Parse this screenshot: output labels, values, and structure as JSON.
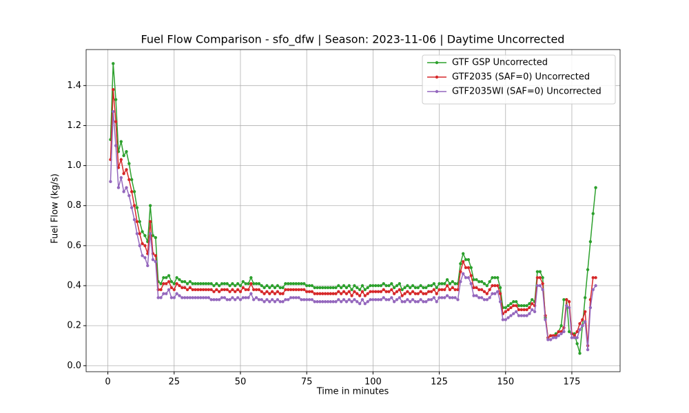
{
  "chart_data": {
    "type": "line",
    "title": "Fuel Flow Comparison - sfo_dfw | Season: 2023-11-06 | Daytime Uncorrected",
    "x_label": "Time in minutes",
    "y_label": "Fuel Flow (kg/s)",
    "x": [
      1,
      2,
      3,
      4,
      5,
      6,
      7,
      8,
      9,
      10,
      11,
      12,
      13,
      14,
      15,
      16,
      17,
      18,
      19,
      20,
      21,
      22,
      23,
      24,
      25,
      26,
      27,
      28,
      29,
      30,
      31,
      32,
      33,
      34,
      35,
      36,
      37,
      38,
      39,
      40,
      41,
      42,
      43,
      44,
      45,
      46,
      47,
      48,
      49,
      50,
      51,
      52,
      53,
      54,
      55,
      56,
      57,
      58,
      59,
      60,
      61,
      62,
      63,
      64,
      65,
      66,
      67,
      68,
      69,
      70,
      71,
      72,
      73,
      74,
      75,
      76,
      77,
      78,
      79,
      80,
      81,
      82,
      83,
      84,
      85,
      86,
      87,
      88,
      89,
      90,
      91,
      92,
      93,
      94,
      95,
      96,
      97,
      98,
      99,
      100,
      101,
      102,
      103,
      104,
      105,
      106,
      107,
      108,
      109,
      110,
      111,
      112,
      113,
      114,
      115,
      116,
      117,
      118,
      119,
      120,
      121,
      122,
      123,
      124,
      125,
      126,
      127,
      128,
      129,
      130,
      131,
      132,
      133,
      134,
      135,
      136,
      137,
      138,
      139,
      140,
      141,
      142,
      143,
      144,
      145,
      146,
      147,
      148,
      149,
      150,
      151,
      152,
      153,
      154,
      155,
      156,
      157,
      158,
      159,
      160,
      161,
      162,
      163,
      164,
      165,
      166,
      167,
      168,
      169,
      170,
      171,
      172,
      173,
      174,
      175,
      176,
      177,
      178,
      179,
      180,
      181,
      182,
      183,
      184
    ],
    "series": [
      {
        "name": "GTF GSP Uncorrected",
        "color": "#2ca02c",
        "values": [
          1.13,
          1.51,
          1.33,
          1.07,
          1.12,
          1.05,
          1.07,
          1.01,
          0.93,
          0.87,
          0.79,
          0.72,
          0.67,
          0.65,
          0.62,
          0.8,
          0.65,
          0.64,
          0.42,
          0.41,
          0.44,
          0.44,
          0.45,
          0.42,
          0.41,
          0.44,
          0.43,
          0.42,
          0.42,
          0.41,
          0.42,
          0.41,
          0.41,
          0.41,
          0.41,
          0.41,
          0.41,
          0.41,
          0.41,
          0.4,
          0.41,
          0.4,
          0.41,
          0.41,
          0.41,
          0.4,
          0.41,
          0.4,
          0.41,
          0.4,
          0.42,
          0.41,
          0.41,
          0.44,
          0.41,
          0.41,
          0.41,
          0.4,
          0.39,
          0.4,
          0.39,
          0.4,
          0.39,
          0.4,
          0.39,
          0.39,
          0.41,
          0.41,
          0.41,
          0.41,
          0.41,
          0.41,
          0.41,
          0.41,
          0.4,
          0.4,
          0.4,
          0.39,
          0.39,
          0.39,
          0.39,
          0.39,
          0.39,
          0.39,
          0.39,
          0.39,
          0.4,
          0.39,
          0.4,
          0.39,
          0.4,
          0.38,
          0.4,
          0.39,
          0.38,
          0.4,
          0.38,
          0.39,
          0.4,
          0.4,
          0.4,
          0.4,
          0.4,
          0.41,
          0.4,
          0.4,
          0.41,
          0.39,
          0.4,
          0.41,
          0.38,
          0.39,
          0.4,
          0.39,
          0.4,
          0.39,
          0.39,
          0.4,
          0.39,
          0.39,
          0.4,
          0.4,
          0.41,
          0.39,
          0.41,
          0.41,
          0.41,
          0.43,
          0.41,
          0.42,
          0.41,
          0.41,
          0.51,
          0.56,
          0.53,
          0.53,
          0.49,
          0.43,
          0.43,
          0.42,
          0.42,
          0.41,
          0.4,
          0.42,
          0.44,
          0.44,
          0.44,
          0.39,
          0.29,
          0.29,
          0.3,
          0.31,
          0.32,
          0.32,
          0.3,
          0.3,
          0.3,
          0.3,
          0.31,
          0.33,
          0.32,
          0.47,
          0.47,
          0.44,
          0.24,
          0.14,
          0.15,
          0.15,
          0.16,
          0.17,
          0.2,
          0.33,
          0.33,
          0.17,
          0.16,
          0.16,
          0.11,
          0.062,
          0.2,
          0.34,
          0.48,
          0.62,
          0.76,
          0.89
        ]
      },
      {
        "name": "GTF2035 (SAF=0) Uncorrected",
        "color": "#d62728",
        "values": [
          1.03,
          1.38,
          1.22,
          0.99,
          1.03,
          0.96,
          0.98,
          0.93,
          0.87,
          0.8,
          0.72,
          0.66,
          0.61,
          0.6,
          0.56,
          0.72,
          0.56,
          0.55,
          0.38,
          0.38,
          0.41,
          0.41,
          0.42,
          0.39,
          0.38,
          0.41,
          0.4,
          0.39,
          0.39,
          0.38,
          0.39,
          0.38,
          0.38,
          0.38,
          0.38,
          0.38,
          0.38,
          0.38,
          0.38,
          0.37,
          0.38,
          0.37,
          0.38,
          0.38,
          0.38,
          0.37,
          0.38,
          0.37,
          0.38,
          0.37,
          0.39,
          0.38,
          0.38,
          0.41,
          0.38,
          0.38,
          0.38,
          0.37,
          0.36,
          0.37,
          0.36,
          0.37,
          0.36,
          0.37,
          0.36,
          0.36,
          0.38,
          0.38,
          0.38,
          0.38,
          0.38,
          0.38,
          0.38,
          0.38,
          0.37,
          0.37,
          0.37,
          0.36,
          0.36,
          0.36,
          0.36,
          0.36,
          0.36,
          0.36,
          0.36,
          0.36,
          0.37,
          0.36,
          0.37,
          0.36,
          0.37,
          0.35,
          0.37,
          0.36,
          0.35,
          0.37,
          0.35,
          0.36,
          0.37,
          0.37,
          0.37,
          0.37,
          0.37,
          0.38,
          0.37,
          0.37,
          0.38,
          0.36,
          0.37,
          0.38,
          0.35,
          0.36,
          0.37,
          0.36,
          0.37,
          0.36,
          0.36,
          0.37,
          0.36,
          0.36,
          0.37,
          0.37,
          0.38,
          0.36,
          0.38,
          0.38,
          0.38,
          0.4,
          0.38,
          0.39,
          0.38,
          0.38,
          0.47,
          0.52,
          0.49,
          0.49,
          0.45,
          0.39,
          0.39,
          0.38,
          0.38,
          0.37,
          0.36,
          0.38,
          0.4,
          0.4,
          0.4,
          0.36,
          0.26,
          0.27,
          0.28,
          0.29,
          0.3,
          0.3,
          0.28,
          0.28,
          0.28,
          0.28,
          0.29,
          0.31,
          0.3,
          0.44,
          0.44,
          0.41,
          0.25,
          0.14,
          0.15,
          0.15,
          0.15,
          0.17,
          0.17,
          0.19,
          0.33,
          0.32,
          0.16,
          0.15,
          0.17,
          0.21,
          0.23,
          0.27,
          0.1,
          0.33,
          0.44,
          0.44
        ]
      },
      {
        "name": "GTF2035WI (SAF=0) Uncorrected",
        "color": "#9467bd",
        "values": [
          0.92,
          1.27,
          1.1,
          0.89,
          0.94,
          0.87,
          0.89,
          0.85,
          0.79,
          0.73,
          0.66,
          0.6,
          0.55,
          0.54,
          0.5,
          0.66,
          0.53,
          0.52,
          0.34,
          0.34,
          0.36,
          0.36,
          0.38,
          0.34,
          0.34,
          0.36,
          0.35,
          0.34,
          0.34,
          0.34,
          0.34,
          0.34,
          0.34,
          0.34,
          0.34,
          0.34,
          0.34,
          0.34,
          0.33,
          0.33,
          0.33,
          0.33,
          0.34,
          0.34,
          0.33,
          0.33,
          0.34,
          0.33,
          0.34,
          0.33,
          0.34,
          0.34,
          0.34,
          0.36,
          0.33,
          0.34,
          0.33,
          0.33,
          0.32,
          0.33,
          0.32,
          0.33,
          0.32,
          0.33,
          0.32,
          0.32,
          0.33,
          0.33,
          0.34,
          0.34,
          0.34,
          0.34,
          0.33,
          0.33,
          0.33,
          0.33,
          0.33,
          0.32,
          0.32,
          0.32,
          0.32,
          0.32,
          0.32,
          0.32,
          0.32,
          0.32,
          0.33,
          0.32,
          0.33,
          0.32,
          0.33,
          0.32,
          0.33,
          0.32,
          0.31,
          0.33,
          0.31,
          0.32,
          0.33,
          0.33,
          0.33,
          0.33,
          0.33,
          0.34,
          0.33,
          0.33,
          0.34,
          0.32,
          0.33,
          0.34,
          0.32,
          0.32,
          0.33,
          0.32,
          0.33,
          0.32,
          0.32,
          0.33,
          0.32,
          0.32,
          0.33,
          0.33,
          0.34,
          0.32,
          0.34,
          0.34,
          0.34,
          0.35,
          0.34,
          0.34,
          0.34,
          0.33,
          0.42,
          0.46,
          0.44,
          0.44,
          0.41,
          0.35,
          0.35,
          0.34,
          0.34,
          0.33,
          0.33,
          0.34,
          0.36,
          0.36,
          0.37,
          0.32,
          0.23,
          0.23,
          0.24,
          0.25,
          0.26,
          0.27,
          0.25,
          0.25,
          0.25,
          0.25,
          0.26,
          0.28,
          0.27,
          0.4,
          0.4,
          0.38,
          0.23,
          0.13,
          0.13,
          0.14,
          0.14,
          0.15,
          0.16,
          0.17,
          0.3,
          0.29,
          0.14,
          0.14,
          0.14,
          0.18,
          0.2,
          0.22,
          0.08,
          0.29,
          0.38,
          0.4
        ]
      }
    ],
    "xlim": [
      -8.2,
      193.2
    ],
    "ylim": [
      -0.03,
      1.58
    ],
    "xticks": [
      0,
      25,
      50,
      75,
      100,
      125,
      150,
      175
    ],
    "yticks": [
      {
        "value": 0,
        "label": "0.0"
      },
      0.2,
      0.4,
      0.6,
      0.8,
      {
        "value": 1,
        "label": "1.0"
      },
      1.2,
      1.4
    ],
    "grid": true,
    "legend": "upper right"
  }
}
